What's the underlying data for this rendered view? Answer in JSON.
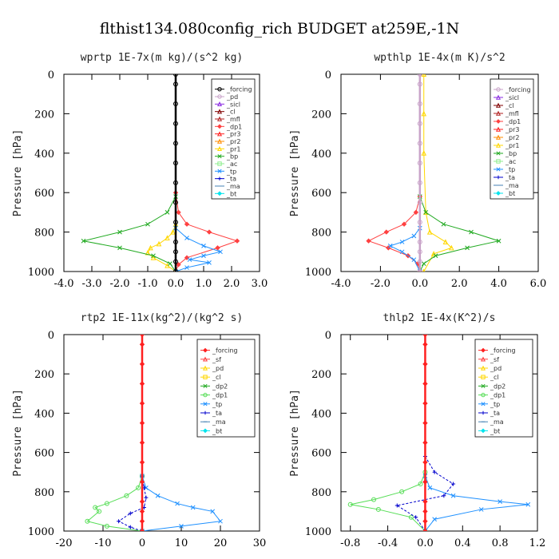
{
  "title": "flthist134.080config_rich  BUDGET at259E,-1N",
  "chart_data": [
    {
      "type": "line",
      "title": "wprtp  1E-7x(m kg)/(s^2 kg)",
      "ylabel": "Pressure [hPa]",
      "xlim": [
        -4.0,
        3.0
      ],
      "ylim": [
        1000,
        0
      ],
      "xticks": [
        -4.0,
        -3.0,
        -2.0,
        -1.0,
        0.0,
        1.0,
        2.0,
        3.0
      ],
      "xtick_labels": [
        "-4.0",
        "-3.0",
        "-2.0",
        "-1.0",
        "0.0",
        "1.0",
        "2.0",
        "3.0"
      ],
      "yticks": [
        0,
        200,
        400,
        600,
        800,
        1000
      ],
      "ytick_labels": [
        "0",
        "200",
        "400",
        "600",
        "800",
        "1000"
      ],
      "legend_position": "top-right",
      "grid": false,
      "series": [
        {
          "name": "_forcing",
          "color": "#000000",
          "marker": "circle",
          "x": [
            0,
            0,
            0,
            0,
            0,
            0,
            0,
            0,
            0,
            0,
            0,
            0,
            0
          ],
          "y": [
            0,
            50,
            150,
            250,
            350,
            450,
            550,
            650,
            750,
            850,
            900,
            950,
            1000
          ]
        },
        {
          "name": "_pd",
          "color": "#c8a2c8",
          "marker": "circle",
          "x": [],
          "y": []
        },
        {
          "name": "_sicl",
          "color": "#8a2be2",
          "marker": "triangle",
          "x": [],
          "y": []
        },
        {
          "name": "_cl",
          "color": "#800000",
          "marker": "triangle",
          "x": [],
          "y": []
        },
        {
          "name": "_mfl",
          "color": "#b22222",
          "marker": "triangle",
          "x": [],
          "y": []
        },
        {
          "name": "_dp1",
          "color": "#ff4040",
          "marker": "diamond",
          "x": [
            0,
            0.1,
            0.4,
            1.2,
            2.2,
            1.5,
            0.4,
            0.1,
            0
          ],
          "y": [
            600,
            700,
            760,
            800,
            845,
            880,
            930,
            965,
            1000
          ]
        },
        {
          "name": "_pr3",
          "color": "#ff2020",
          "marker": "triangle",
          "x": [],
          "y": []
        },
        {
          "name": "_pr2",
          "color": "#ff8c00",
          "marker": "triangle",
          "x": [],
          "y": []
        },
        {
          "name": "_pr1",
          "color": "#ffd700",
          "marker": "triangle",
          "x": [
            0,
            -0.1,
            -0.3,
            -0.6,
            -0.9,
            -1.0,
            -0.8,
            -0.3,
            0
          ],
          "y": [
            760,
            800,
            830,
            860,
            880,
            905,
            930,
            970,
            1000
          ]
        },
        {
          "name": "_bp",
          "color": "#22aa22",
          "marker": "cross",
          "x": [
            0,
            -0.3,
            -1.0,
            -2.0,
            -3.3,
            -2.0,
            -0.8,
            -0.2,
            0
          ],
          "y": [
            620,
            700,
            760,
            800,
            845,
            880,
            920,
            960,
            1000
          ]
        },
        {
          "name": "_ac",
          "color": "#90ee90",
          "marker": "square",
          "x": [],
          "y": []
        },
        {
          "name": "_tp",
          "color": "#1e90ff",
          "marker": "cross",
          "x": [
            0,
            0.4,
            1.0,
            1.6,
            1.0,
            0.5,
            1.2,
            0.4,
            0
          ],
          "y": [
            780,
            830,
            870,
            900,
            920,
            940,
            955,
            980,
            1000
          ]
        },
        {
          "name": "_ta",
          "color": "#0000cd",
          "marker": "plus",
          "x": [],
          "y": []
        },
        {
          "name": "_ma",
          "color": "#4682b4",
          "marker": "dash",
          "x": [],
          "y": []
        },
        {
          "name": "_bt",
          "color": "#00e5ee",
          "marker": "diamond",
          "x": [],
          "y": []
        }
      ]
    },
    {
      "type": "line",
      "title": "wpthlp  1E-4x(m K)/s^2",
      "ylabel": "Pressure [hPa]",
      "xlim": [
        -4.0,
        6.0
      ],
      "ylim": [
        1000,
        0
      ],
      "xticks": [
        -4.0,
        -2.0,
        0.0,
        2.0,
        4.0,
        6.0
      ],
      "xtick_labels": [
        "-4.0",
        "-2.0",
        "0.0",
        "2.0",
        "4.0",
        "6.0"
      ],
      "yticks": [
        0,
        200,
        400,
        600,
        800,
        1000
      ],
      "ytick_labels": [
        "0",
        "200",
        "400",
        "600",
        "800",
        "1000"
      ],
      "legend_position": "top-right",
      "grid": false,
      "series": [
        {
          "name": "_forcing",
          "color": "#c8a2c8",
          "marker": "circle",
          "x": [
            0,
            0,
            0,
            0,
            0,
            0,
            0,
            0,
            0,
            0,
            0,
            0,
            0
          ],
          "y": [
            0,
            50,
            150,
            250,
            350,
            450,
            550,
            650,
            750,
            850,
            900,
            950,
            1000
          ]
        },
        {
          "name": "_sicl",
          "color": "#8a2be2",
          "marker": "triangle",
          "x": [],
          "y": []
        },
        {
          "name": "_cl",
          "color": "#800000",
          "marker": "triangle",
          "x": [],
          "y": []
        },
        {
          "name": "_mfl",
          "color": "#b22222",
          "marker": "triangle",
          "x": [],
          "y": []
        },
        {
          "name": "_dp1",
          "color": "#ff4040",
          "marker": "diamond",
          "x": [
            0,
            -0.2,
            -0.8,
            -1.7,
            -2.6,
            -1.6,
            -0.6,
            -0.1,
            0
          ],
          "y": [
            620,
            700,
            760,
            800,
            845,
            880,
            920,
            960,
            1000
          ]
        },
        {
          "name": "_pr3",
          "color": "#ff2020",
          "marker": "triangle",
          "x": [],
          "y": []
        },
        {
          "name": "_pr2",
          "color": "#ff8c00",
          "marker": "triangle",
          "x": [],
          "y": []
        },
        {
          "name": "_pr1",
          "color": "#ffd700",
          "marker": "triangle",
          "x": [
            0.2,
            0.2,
            0.2,
            0.3,
            0.5,
            1.3,
            1.6,
            0.7,
            0.2
          ],
          "y": [
            0,
            200,
            400,
            700,
            800,
            850,
            880,
            910,
            1000
          ]
        },
        {
          "name": "_bp",
          "color": "#22aa22",
          "marker": "cross",
          "x": [
            0,
            0.3,
            1.2,
            2.6,
            4.0,
            2.4,
            0.8,
            0.2,
            0
          ],
          "y": [
            620,
            700,
            760,
            800,
            845,
            880,
            920,
            960,
            1000
          ]
        },
        {
          "name": "_ac",
          "color": "#90ee90",
          "marker": "square",
          "x": [],
          "y": []
        },
        {
          "name": "_tp",
          "color": "#1e90ff",
          "marker": "cross",
          "x": [
            0,
            -0.3,
            -0.9,
            -1.5,
            -0.9,
            -0.3,
            0
          ],
          "y": [
            780,
            820,
            850,
            870,
            900,
            940,
            1000
          ]
        },
        {
          "name": "_ta",
          "color": "#0000cd",
          "marker": "plus",
          "x": [],
          "y": []
        },
        {
          "name": "_ma",
          "color": "#4682b4",
          "marker": "dash",
          "x": [],
          "y": []
        },
        {
          "name": "_bt",
          "color": "#00e5ee",
          "marker": "diamond",
          "x": [],
          "y": []
        }
      ]
    },
    {
      "type": "line",
      "title": "rtp2  1E-11x(kg^2)/(kg^2 s)",
      "ylabel": "Pressure [hPa]",
      "xlim": [
        -20,
        30
      ],
      "ylim": [
        1000,
        0
      ],
      "xticks": [
        -20,
        -10,
        0,
        10,
        20,
        30
      ],
      "xtick_labels": [
        "-20",
        "-10",
        "0",
        "10",
        "20",
        "30"
      ],
      "yticks": [
        0,
        200,
        400,
        600,
        800,
        1000
      ],
      "ytick_labels": [
        "0",
        "200",
        "400",
        "600",
        "800",
        "1000"
      ],
      "legend_position": "top-right",
      "grid": false,
      "series": [
        {
          "name": "_forcing",
          "color": "#ff2020",
          "marker": "diamond",
          "x": [
            0,
            0,
            0,
            0,
            0,
            0,
            0,
            0,
            0,
            0,
            0,
            0,
            0
          ],
          "y": [
            0,
            50,
            150,
            250,
            350,
            450,
            550,
            650,
            750,
            850,
            900,
            950,
            1000
          ]
        },
        {
          "name": "_sf",
          "color": "#ff4040",
          "marker": "triangle",
          "x": [],
          "y": []
        },
        {
          "name": "_pd",
          "color": "#ffd700",
          "marker": "triangle",
          "x": [],
          "y": []
        },
        {
          "name": "_cl",
          "color": "#ffd700",
          "marker": "square",
          "x": [],
          "y": []
        },
        {
          "name": "_dp2",
          "color": "#22aa22",
          "marker": "cross",
          "x": [],
          "y": []
        },
        {
          "name": "_dp1",
          "color": "#55dd55",
          "marker": "circle",
          "x": [
            0,
            -1,
            -4,
            -9,
            -12,
            -11,
            -14,
            -9,
            0
          ],
          "y": [
            720,
            780,
            820,
            860,
            880,
            900,
            950,
            975,
            1000
          ]
        },
        {
          "name": "_tp",
          "color": "#1e90ff",
          "marker": "cross",
          "x": [
            0,
            1,
            4,
            9,
            13,
            18,
            20,
            10,
            0
          ],
          "y": [
            720,
            780,
            820,
            860,
            880,
            900,
            950,
            975,
            1000
          ]
        },
        {
          "name": "_ta",
          "color": "#0000cd",
          "marker": "plus",
          "x": [
            0,
            0.5,
            1,
            0.5,
            -3,
            -6,
            -3,
            0
          ],
          "y": [
            720,
            780,
            830,
            880,
            910,
            950,
            980,
            1000
          ]
        },
        {
          "name": "_ma",
          "color": "#4682b4",
          "marker": "dash",
          "x": [],
          "y": []
        },
        {
          "name": "_bt",
          "color": "#00e5ee",
          "marker": "diamond",
          "x": [],
          "y": []
        }
      ]
    },
    {
      "type": "line",
      "title": "thlp2  1E-4x(K^2)/s",
      "ylabel": "Pressure [hPa]",
      "xlim": [
        -0.9,
        1.2
      ],
      "ylim": [
        1000,
        0
      ],
      "xticks": [
        -0.8,
        -0.4,
        0.0,
        0.4,
        0.8,
        1.2
      ],
      "xtick_labels": [
        "-0.8",
        "-0.4",
        "0.0",
        "0.4",
        "0.8",
        "1.2"
      ],
      "yticks": [
        0,
        200,
        400,
        600,
        800,
        1000
      ],
      "ytick_labels": [
        "0",
        "200",
        "400",
        "600",
        "800",
        "1000"
      ],
      "legend_position": "top-right",
      "grid": false,
      "series": [
        {
          "name": "_forcing",
          "color": "#ff2020",
          "marker": "diamond",
          "x": [
            0,
            0,
            0,
            0,
            0,
            0,
            0,
            0,
            0,
            0,
            0,
            0,
            0
          ],
          "y": [
            0,
            50,
            150,
            250,
            350,
            450,
            550,
            650,
            750,
            850,
            900,
            950,
            1000
          ]
        },
        {
          "name": "_sf",
          "color": "#ff4040",
          "marker": "triangle",
          "x": [],
          "y": []
        },
        {
          "name": "_pd",
          "color": "#ffd700",
          "marker": "triangle",
          "x": [],
          "y": []
        },
        {
          "name": "_cl",
          "color": "#ffd700",
          "marker": "square",
          "x": [],
          "y": []
        },
        {
          "name": "_dp2",
          "color": "#22aa22",
          "marker": "cross",
          "x": [],
          "y": []
        },
        {
          "name": "_dp1",
          "color": "#55dd55",
          "marker": "circle",
          "x": [
            0,
            -0.05,
            -0.25,
            -0.55,
            -0.8,
            -0.5,
            -0.15,
            0
          ],
          "y": [
            700,
            760,
            800,
            840,
            865,
            890,
            930,
            1000
          ]
        },
        {
          "name": "_tp",
          "color": "#1e90ff",
          "marker": "cross",
          "x": [
            0,
            0.05,
            0.3,
            0.8,
            1.1,
            0.6,
            0.1,
            0
          ],
          "y": [
            720,
            780,
            820,
            850,
            865,
            890,
            940,
            1000
          ]
        },
        {
          "name": "_ta",
          "color": "#0000cd",
          "marker": "plus",
          "x": [
            0,
            0.1,
            0.3,
            0.2,
            -0.3,
            -0.1,
            0
          ],
          "y": [
            620,
            700,
            760,
            820,
            870,
            930,
            1000
          ]
        },
        {
          "name": "_ma",
          "color": "#4682b4",
          "marker": "dash",
          "x": [],
          "y": []
        },
        {
          "name": "_bt",
          "color": "#00e5ee",
          "marker": "diamond",
          "x": [],
          "y": []
        }
      ]
    }
  ]
}
